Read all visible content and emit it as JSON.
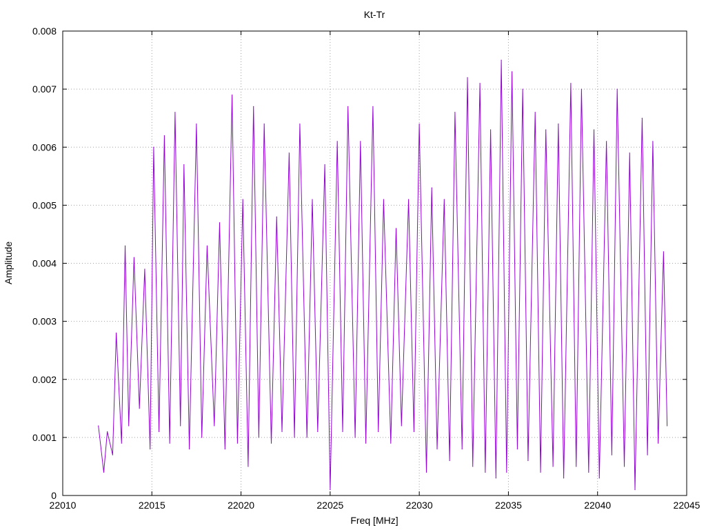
{
  "chart_data": {
    "type": "line",
    "title": "Kt-Tr",
    "xlabel": "Freq [MHz]",
    "ylabel": "Amplitude",
    "xlim": [
      22010,
      22045
    ],
    "ylim": [
      0,
      0.008
    ],
    "x_ticks": [
      "22010",
      "22015",
      "22020",
      "22025",
      "22030",
      "22035",
      "22040",
      "22045"
    ],
    "y_ticks": [
      "0",
      "0.001",
      "0.002",
      "0.003",
      "0.004",
      "0.005",
      "0.006",
      "0.007",
      "0.008"
    ],
    "grid": true,
    "series": [
      {
        "color": "#9400d3",
        "x": [
          22012.0,
          22012.3,
          22012.5,
          22012.8,
          22013.0,
          22013.3,
          22013.5,
          22013.7,
          22014.0,
          22014.3,
          22014.6,
          22014.9,
          22015.1,
          22015.4,
          22015.7,
          22016.0,
          22016.3,
          22016.6,
          22016.8,
          22017.1,
          22017.5,
          22017.8,
          22018.1,
          22018.5,
          22018.8,
          22019.1,
          22019.5,
          22019.8,
          22020.1,
          22020.4,
          22020.7,
          22021.0,
          22021.3,
          22021.7,
          22022.0,
          22022.3,
          22022.7,
          22023.0,
          22023.3,
          22023.7,
          22024.0,
          22024.3,
          22024.7,
          22025.0,
          22025.4,
          22025.7,
          22026.0,
          22026.4,
          22026.7,
          22027.0,
          22027.4,
          22027.7,
          22028.0,
          22028.4,
          22028.7,
          22029.0,
          22029.4,
          22029.7,
          22030.0,
          22030.4,
          22030.7,
          22031.0,
          22031.4,
          22031.7,
          22032.0,
          22032.4,
          22032.7,
          22033.0,
          22033.4,
          22033.7,
          22034.0,
          22034.3,
          22034.6,
          22034.9,
          22035.2,
          22035.5,
          22035.8,
          22036.1,
          22036.5,
          22036.8,
          22037.1,
          22037.5,
          22037.8,
          22038.1,
          22038.5,
          22038.8,
          22039.1,
          22039.5,
          22039.8,
          22040.1,
          22040.5,
          22040.8,
          22041.1,
          22041.5,
          22041.8,
          22042.1,
          22042.5,
          22042.8,
          22043.1,
          22043.4,
          22043.7,
          22043.9
        ],
        "y": [
          0.0012,
          0.0004,
          0.0011,
          0.0007,
          0.0028,
          0.0009,
          0.0043,
          0.0012,
          0.0041,
          0.0015,
          0.0039,
          0.0008,
          0.006,
          0.0011,
          0.0062,
          0.0009,
          0.0066,
          0.0012,
          0.0057,
          0.0008,
          0.0064,
          0.001,
          0.0043,
          0.0012,
          0.0047,
          0.0008,
          0.0069,
          0.0009,
          0.0051,
          0.0005,
          0.0067,
          0.001,
          0.0064,
          0.0009,
          0.0048,
          0.0011,
          0.0059,
          0.001,
          0.0064,
          0.001,
          0.0051,
          0.0011,
          0.0057,
          0.0001,
          0.0061,
          0.0011,
          0.0067,
          0.001,
          0.0061,
          0.0009,
          0.0067,
          0.0011,
          0.0051,
          0.0009,
          0.0046,
          0.0012,
          0.0051,
          0.0011,
          0.0064,
          0.0004,
          0.0053,
          0.0008,
          0.0051,
          0.0006,
          0.0066,
          0.0008,
          0.0072,
          0.0005,
          0.0071,
          0.0004,
          0.0063,
          0.0003,
          0.0075,
          0.0004,
          0.0073,
          0.0008,
          0.007,
          0.0006,
          0.0066,
          0.0004,
          0.0063,
          0.0005,
          0.0064,
          0.0003,
          0.0071,
          0.0005,
          0.007,
          0.0004,
          0.0063,
          0.0003,
          0.0061,
          0.0007,
          0.007,
          0.0005,
          0.0059,
          0.0001,
          0.0065,
          0.0007,
          0.0061,
          0.0009,
          0.0042,
          0.0012
        ]
      }
    ]
  }
}
